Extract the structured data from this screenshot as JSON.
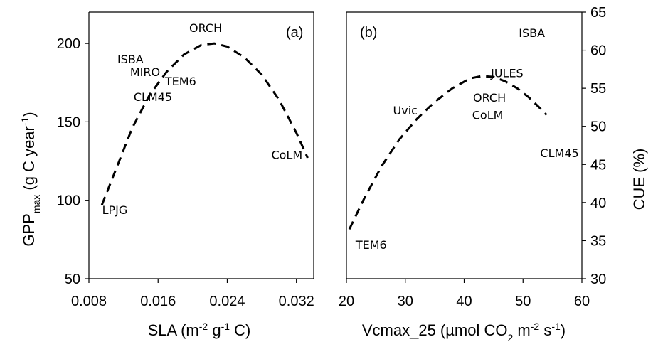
{
  "chart_data": [
    {
      "type": "scatter",
      "panel_label": "(a)",
      "xlabel": {
        "main": "SLA (m",
        "sup1": "-2",
        "mid": " g",
        "sup2": "-1",
        "end": " C)"
      },
      "ylabel": {
        "main": "GPP",
        "sub": "max",
        "mid": " (g C year",
        "sup": "-1",
        "end": ")"
      },
      "xlim": [
        0.008,
        0.034
      ],
      "ylim": [
        50,
        220
      ],
      "xticks": [
        "0.008",
        "0.016",
        "0.024",
        "0.032"
      ],
      "xtick_values": [
        0.008,
        0.016,
        0.024,
        0.032
      ],
      "yticks": [
        "50",
        "100",
        "150",
        "200"
      ],
      "ytick_values": [
        50,
        100,
        150,
        200
      ],
      "points": [
        {
          "label": "ORCH",
          "x": 0.0215,
          "y": 210
        },
        {
          "label": "ISBA",
          "x": 0.0128,
          "y": 190
        },
        {
          "label": "MIRO",
          "x": 0.0145,
          "y": 182
        },
        {
          "label": "TEM6",
          "x": 0.0186,
          "y": 176
        },
        {
          "label": "CLM45",
          "x": 0.0154,
          "y": 166
        },
        {
          "label": "CoLM",
          "x": 0.0309,
          "y": 129
        },
        {
          "label": "LPJG",
          "x": 0.011,
          "y": 94
        }
      ],
      "fit_curve": {
        "style": "dashed",
        "x": [
          0.0095,
          0.011,
          0.013,
          0.015,
          0.017,
          0.019,
          0.021,
          0.0225,
          0.024,
          0.026,
          0.028,
          0.03,
          0.032,
          0.0333
        ],
        "y": [
          97,
          118,
          146,
          167,
          182,
          193,
          199,
          200,
          198,
          191,
          180,
          164,
          143,
          127
        ]
      }
    },
    {
      "type": "scatter",
      "panel_label": "(b)",
      "xlabel": {
        "main": "Vcmax_25 (µmol CO",
        "sub": "2",
        "mid": " m",
        "sup1": "-2",
        "mid2": " s",
        "sup2": "-1",
        "end": ")"
      },
      "ylabel": "CUE (%)",
      "y_axis_side": "right",
      "xlim": [
        20,
        60
      ],
      "ylim": [
        30,
        65
      ],
      "xticks": [
        "20",
        "30",
        "40",
        "50",
        "60"
      ],
      "xtick_values": [
        20,
        30,
        40,
        50,
        60
      ],
      "yticks": [
        "30",
        "35",
        "40",
        "45",
        "50",
        "55",
        "60",
        "65"
      ],
      "ytick_values": [
        30,
        35,
        40,
        45,
        50,
        55,
        60,
        65
      ],
      "points": [
        {
          "label": "ISBA",
          "x": 51.5,
          "y": 62.3
        },
        {
          "label": "JULES",
          "x": 47.3,
          "y": 57.0
        },
        {
          "label": "Uvic",
          "x": 30.0,
          "y": 52.1
        },
        {
          "label": "ORCH",
          "x": 44.3,
          "y": 53.8
        },
        {
          "label": "CoLM",
          "x": 44.0,
          "y": 51.5
        },
        {
          "label": "CLM45",
          "x": 56.2,
          "y": 46.5
        },
        {
          "label": "TEM6",
          "x": 24.2,
          "y": 34.5
        }
      ],
      "fit_curve": {
        "style": "dashed",
        "x": [
          20.5,
          23,
          26,
          29,
          32,
          35,
          38,
          41,
          43,
          45,
          47,
          49,
          51,
          53,
          54
        ],
        "y": [
          36.5,
          40.5,
          44.8,
          48.3,
          51.0,
          53.2,
          55.0,
          56.3,
          56.6,
          56.5,
          55.9,
          55.0,
          53.8,
          52.3,
          51.5
        ]
      }
    }
  ]
}
